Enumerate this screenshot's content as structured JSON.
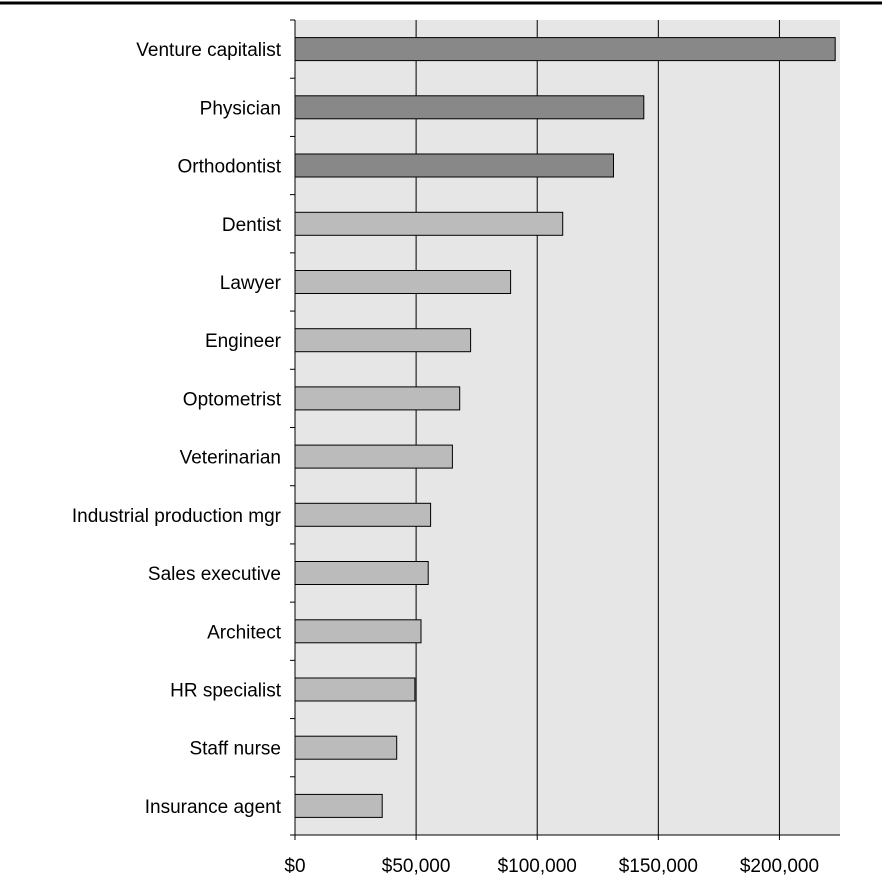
{
  "chart_data": {
    "type": "bar",
    "orientation": "horizontal",
    "categories": [
      "Venture capitalist",
      "Physician",
      "Orthodontist",
      "Dentist",
      "Lawyer",
      "Engineer",
      "Optometrist",
      "Veterinarian",
      "Industrial production mgr",
      "Sales executive",
      "Architect",
      "HR specialist",
      "Staff nurse",
      "Insurance agent"
    ],
    "values": [
      223000,
      144000,
      131500,
      110500,
      89000,
      72500,
      68000,
      65000,
      56000,
      55000,
      52000,
      49500,
      42000,
      36000
    ],
    "bar_colors": [
      "#888888",
      "#888888",
      "#888888",
      "#bbbbbb",
      "#bbbbbb",
      "#bbbbbb",
      "#bbbbbb",
      "#bbbbbb",
      "#bbbbbb",
      "#bbbbbb",
      "#bbbbbb",
      "#bbbbbb",
      "#bbbbbb",
      "#bbbbbb"
    ],
    "xlim": [
      0,
      225000
    ],
    "xticks": [
      0,
      50000,
      100000,
      150000,
      200000
    ],
    "xtick_labels": [
      "$0",
      "$50,000",
      "$100,000",
      "$150,000",
      "$200,000"
    ],
    "title": "",
    "xlabel": "",
    "ylabel": "",
    "grid": true,
    "plot_background": "#e6e6e6"
  }
}
